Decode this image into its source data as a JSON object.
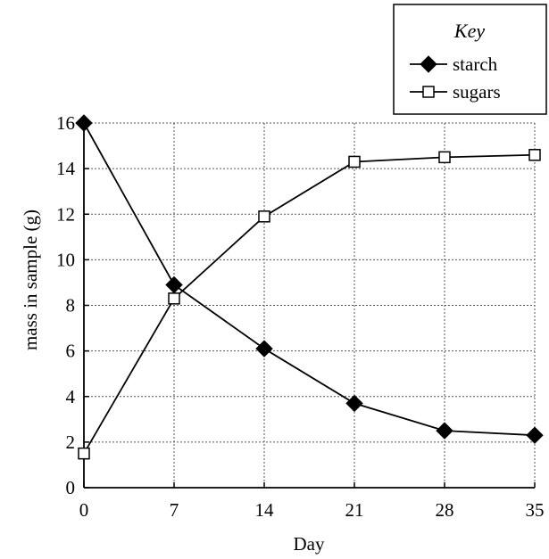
{
  "chart_data": {
    "type": "line",
    "xlabel": "Day",
    "ylabel": "mass in sample (g)",
    "x": [
      0,
      7,
      14,
      21,
      28,
      35
    ],
    "x_ticks": [
      "0",
      "7",
      "14",
      "21",
      "28",
      "35"
    ],
    "y_ticks": [
      "0",
      "2",
      "4",
      "6",
      "8",
      "10",
      "12",
      "14",
      "16"
    ],
    "xlim": [
      0,
      35
    ],
    "ylim": [
      0,
      16
    ],
    "grid": true,
    "legend": {
      "title": "Key",
      "position": "top-right"
    },
    "series": [
      {
        "name": "starch",
        "marker": "filled-diamond",
        "values": [
          16,
          8.9,
          6.1,
          3.7,
          2.5,
          2.3
        ]
      },
      {
        "name": "sugars",
        "marker": "open-square",
        "values": [
          1.5,
          8.3,
          11.9,
          14.3,
          14.5,
          14.6
        ]
      }
    ]
  }
}
